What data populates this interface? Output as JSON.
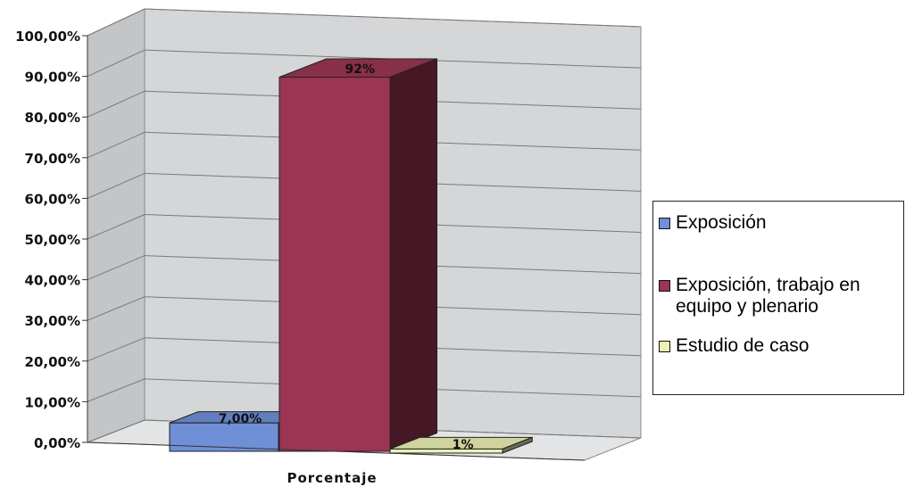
{
  "chart_data": {
    "type": "bar",
    "categories": [
      "Porcentaje"
    ],
    "series": [
      {
        "name": "Exposición",
        "values": [
          7.0
        ],
        "label": "7,00%",
        "color": "#6f8fd6"
      },
      {
        "name": "Exposición, trabajo en equipo y plenario",
        "values": [
          92
        ],
        "label": "92%",
        "color": "#9b3553"
      },
      {
        "name": "Estudio de caso",
        "values": [
          1
        ],
        "label": "1%",
        "color": "#ecf0b4"
      }
    ],
    "y_ticks": [
      "0,00%",
      "10,00%",
      "20,00%",
      "30,00%",
      "40,00%",
      "50,00%",
      "60,00%",
      "70,00%",
      "80,00%",
      "90,00%",
      "100,00%"
    ],
    "xlabel": "Porcentaje",
    "ylabel": "",
    "ylim": [
      0,
      100
    ],
    "grid": true,
    "legend_position": "right",
    "three_d": true,
    "wall_color": "#d4d6d8"
  },
  "legend": {
    "items": [
      {
        "label_lines": [
          "Exposición"
        ]
      },
      {
        "label_lines": [
          "Exposición, trabajo en",
          "equipo y plenario"
        ]
      },
      {
        "label_lines": [
          "Estudio de caso"
        ]
      }
    ]
  }
}
